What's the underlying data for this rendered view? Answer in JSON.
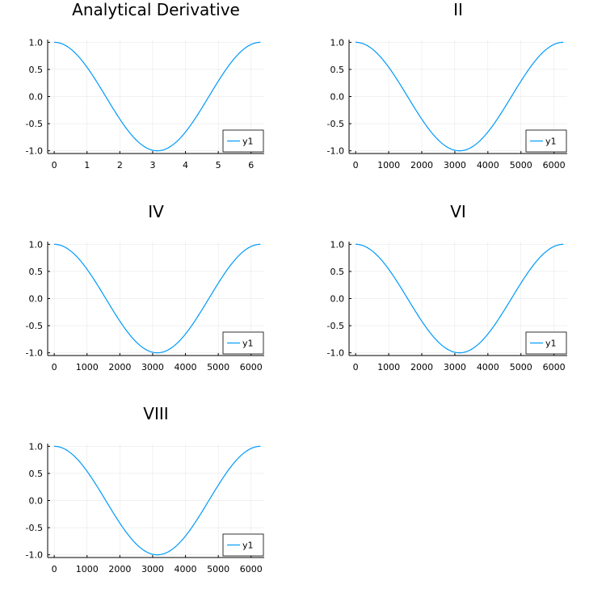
{
  "series_color": "#009AFA",
  "chart_data": [
    {
      "type": "line",
      "title": "Analytical Derivative",
      "xlabel": "",
      "ylabel": "",
      "xlim": [
        -0.2,
        6.4
      ],
      "ylim": [
        -1.05,
        1.05
      ],
      "xticks": [
        0,
        1,
        2,
        3,
        4,
        5,
        6
      ],
      "xtick_labels": [
        "0",
        "1",
        "2",
        "3",
        "4",
        "5",
        "6"
      ],
      "yticks": [
        -1.0,
        -0.5,
        0.0,
        0.5,
        1.0
      ],
      "ytick_labels": [
        "-1.0",
        "-0.5",
        "0.0",
        "0.5",
        "1.0"
      ],
      "grid": true,
      "legend": "bottom-right",
      "series": [
        {
          "name": "y1",
          "function": "cos(x)",
          "x_range": [
            0,
            6.2832
          ]
        }
      ]
    },
    {
      "type": "line",
      "title": "II",
      "xlabel": "",
      "ylabel": "",
      "xlim": [
        -200,
        6400
      ],
      "ylim": [
        -1.05,
        1.05
      ],
      "xticks": [
        0,
        1000,
        2000,
        3000,
        4000,
        5000,
        6000
      ],
      "xtick_labels": [
        "0",
        "1000",
        "2000",
        "3000",
        "4000",
        "5000",
        "6000"
      ],
      "yticks": [
        -1.0,
        -0.5,
        0.0,
        0.5,
        1.0
      ],
      "ytick_labels": [
        "-1.0",
        "-0.5",
        "0.0",
        "0.5",
        "1.0"
      ],
      "grid": true,
      "legend": "bottom-right",
      "series": [
        {
          "name": "y1",
          "function": "cos(2*pi*x/6283)",
          "x_range": [
            0,
            6283
          ]
        }
      ]
    },
    {
      "type": "line",
      "title": "IV",
      "xlabel": "",
      "ylabel": "",
      "xlim": [
        -200,
        6400
      ],
      "ylim": [
        -1.05,
        1.05
      ],
      "xticks": [
        0,
        1000,
        2000,
        3000,
        4000,
        5000,
        6000
      ],
      "xtick_labels": [
        "0",
        "1000",
        "2000",
        "3000",
        "4000",
        "5000",
        "6000"
      ],
      "yticks": [
        -1.0,
        -0.5,
        0.0,
        0.5,
        1.0
      ],
      "ytick_labels": [
        "-1.0",
        "-0.5",
        "0.0",
        "0.5",
        "1.0"
      ],
      "grid": true,
      "legend": "bottom-right",
      "series": [
        {
          "name": "y1",
          "function": "cos(2*pi*x/6283)",
          "x_range": [
            0,
            6283
          ]
        }
      ]
    },
    {
      "type": "line",
      "title": "VI",
      "xlabel": "",
      "ylabel": "",
      "xlim": [
        -200,
        6400
      ],
      "ylim": [
        -1.05,
        1.05
      ],
      "xticks": [
        0,
        1000,
        2000,
        3000,
        4000,
        5000,
        6000
      ],
      "xtick_labels": [
        "0",
        "1000",
        "2000",
        "3000",
        "4000",
        "5000",
        "6000"
      ],
      "yticks": [
        -1.0,
        -0.5,
        0.0,
        0.5,
        1.0
      ],
      "ytick_labels": [
        "-1.0",
        "-0.5",
        "0.0",
        "0.5",
        "1.0"
      ],
      "grid": true,
      "legend": "bottom-right",
      "series": [
        {
          "name": "y1",
          "function": "cos(2*pi*x/6283)",
          "x_range": [
            0,
            6283
          ]
        }
      ]
    },
    {
      "type": "line",
      "title": "VIII",
      "xlabel": "",
      "ylabel": "",
      "xlim": [
        -200,
        6400
      ],
      "ylim": [
        -1.05,
        1.05
      ],
      "xticks": [
        0,
        1000,
        2000,
        3000,
        4000,
        5000,
        6000
      ],
      "xtick_labels": [
        "0",
        "1000",
        "2000",
        "3000",
        "4000",
        "5000",
        "6000"
      ],
      "yticks": [
        -1.0,
        -0.5,
        0.0,
        0.5,
        1.0
      ],
      "ytick_labels": [
        "-1.0",
        "-0.5",
        "0.0",
        "0.5",
        "1.0"
      ],
      "grid": true,
      "legend": "bottom-right",
      "series": [
        {
          "name": "y1",
          "function": "cos(2*pi*x/6283)",
          "x_range": [
            0,
            6283
          ]
        }
      ]
    }
  ]
}
